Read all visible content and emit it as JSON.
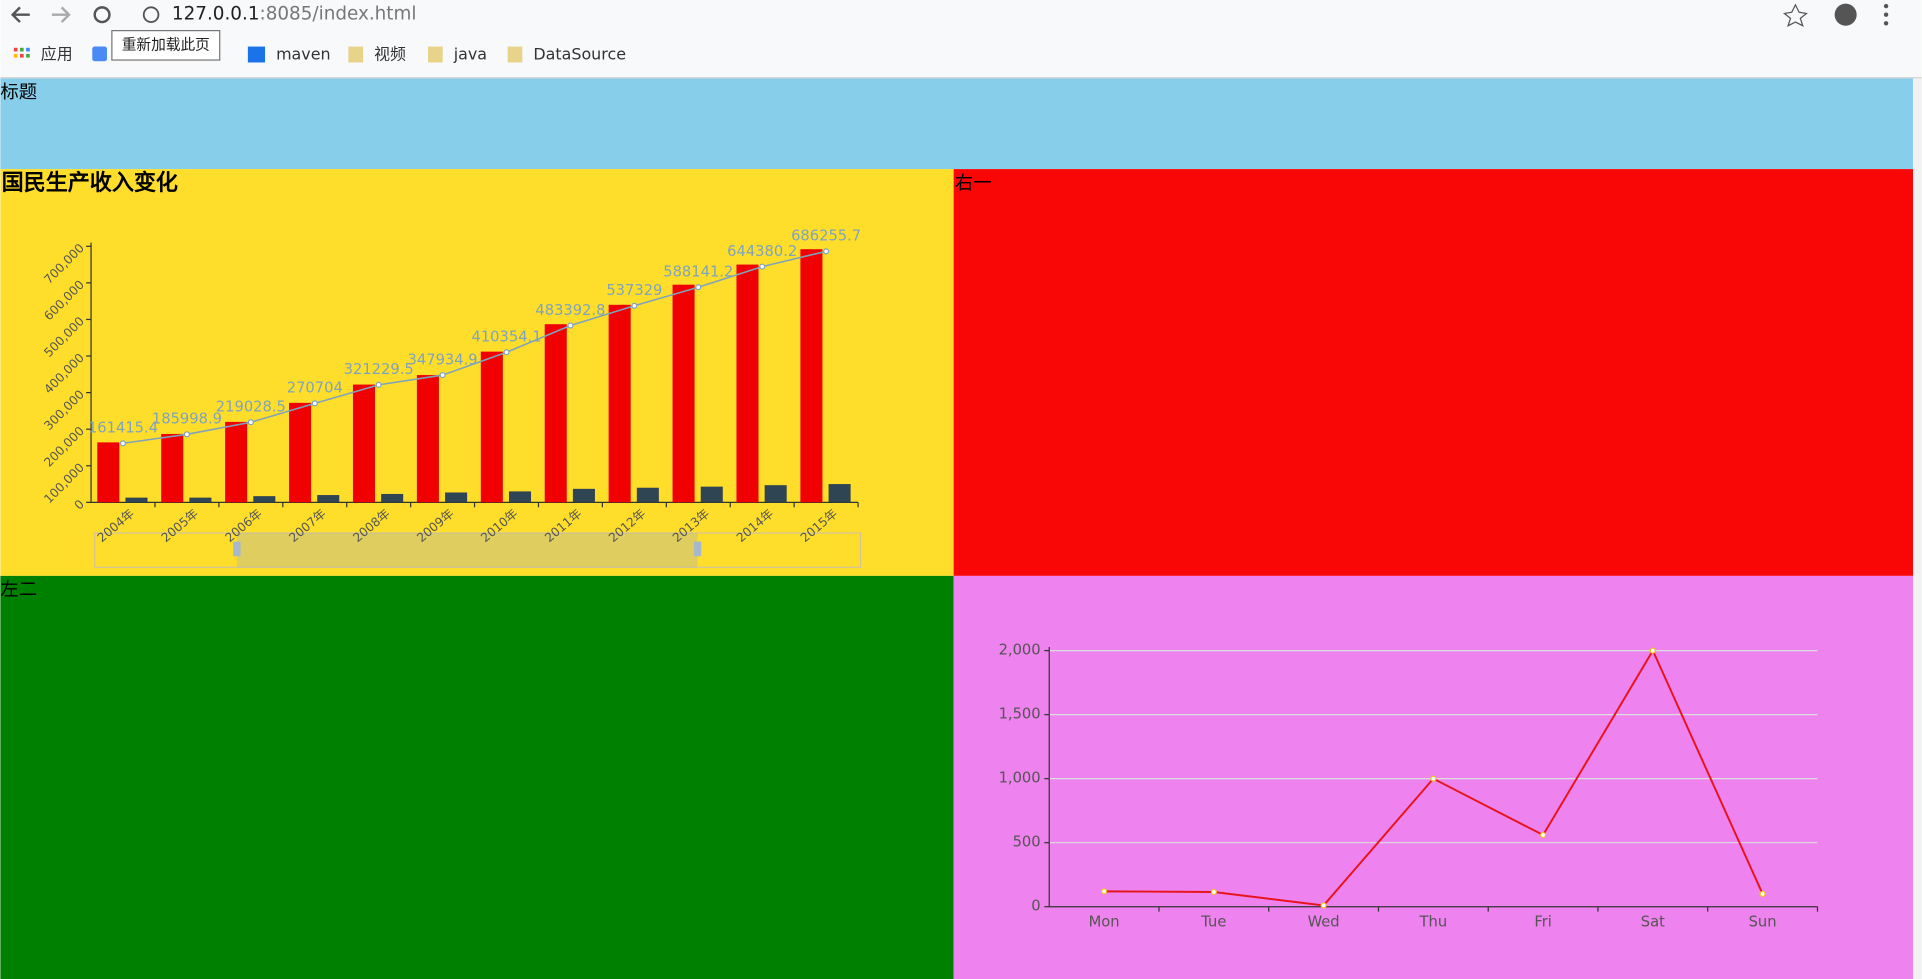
{
  "browser": {
    "url_host": "127.0.0.1",
    "url_rest": ":8085/index.html",
    "tooltip": "重新加载此页",
    "bookmarks": [
      "应用",
      "maven",
      "视频",
      "java",
      "DataSource"
    ]
  },
  "page": {
    "header": "标题",
    "right_one": "右一",
    "left_two": "左二"
  },
  "chart_data": [
    {
      "type": "bar",
      "title": "国民生产收入变化",
      "categories": [
        "2004年",
        "2005年",
        "2006年",
        "2007年",
        "2008年",
        "2009年",
        "2010年",
        "2011年",
        "2012年",
        "2013年",
        "2014年",
        "2015年"
      ],
      "series": [
        {
          "type": "bar",
          "color": "#f00000",
          "values": [
            164000,
            187000,
            220000,
            272000,
            322000,
            348000,
            412000,
            487000,
            540000,
            595000,
            650000,
            692000
          ]
        },
        {
          "type": "bar",
          "color": "#2f4554",
          "values": [
            13000,
            13000,
            17000,
            20000,
            23000,
            27000,
            30000,
            37000,
            40000,
            43000,
            47000,
            50000
          ]
        },
        {
          "type": "line",
          "color": "#7fa3bb",
          "values": [
            161415.4,
            185998.9,
            219028.5,
            270704,
            321229.5,
            347934.9,
            410354.1,
            483392.8,
            537329,
            588141.2,
            644380.2,
            686255.7
          ]
        }
      ],
      "ylim": [
        0,
        700000
      ],
      "yticks": [
        0,
        {
          "value": 100000,
          "label": "100,000"
        },
        {
          "value": 200000,
          "label": "200,000"
        },
        {
          "value": 300000,
          "label": "300,000"
        },
        {
          "value": 400000,
          "label": "400,000"
        },
        {
          "value": 500000,
          "label": "500,000"
        },
        {
          "value": 600000,
          "label": "600,000"
        },
        {
          "value": 700000,
          "label": "700,000"
        }
      ],
      "grid": false
    },
    {
      "type": "line",
      "categories": [
        "Mon",
        "Tue",
        "Wed",
        "Thu",
        "Fri",
        "Sat",
        "Sun"
      ],
      "series": [
        {
          "color": "#e8141b",
          "values": [
            120,
            115,
            10,
            1000,
            560,
            2000,
            100
          ]
        }
      ],
      "ylim": [
        0,
        2000
      ],
      "yticks": [
        0,
        500,
        {
          "value": 1000,
          "label": "1,000"
        },
        {
          "value": 1500,
          "label": "1,500"
        },
        {
          "value": 2000,
          "label": "2,000"
        }
      ],
      "grid": true
    }
  ]
}
